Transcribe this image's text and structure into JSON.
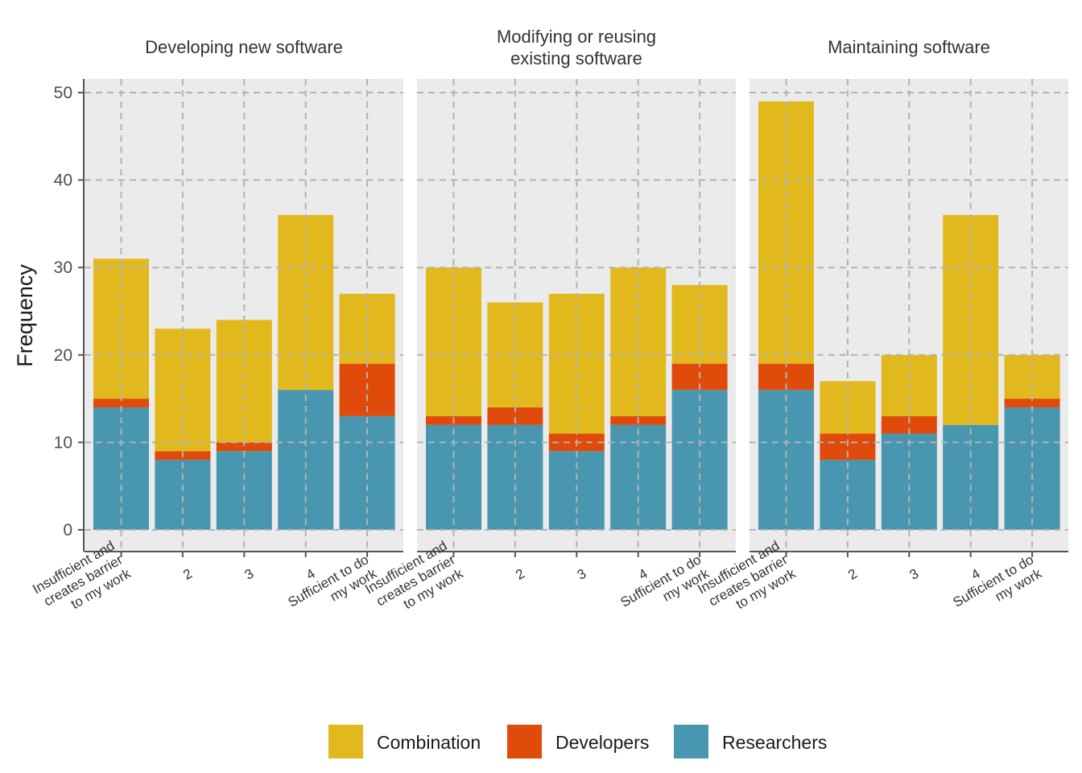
{
  "chart_data": {
    "type": "bar",
    "stacked": true,
    "ylabel": "Frequency",
    "xlabel": "",
    "ylim": [
      0,
      50
    ],
    "yticks": [
      "0",
      "10",
      "20",
      "30",
      "40",
      "50"
    ],
    "categories": [
      "Insufficient and\ncreates barrier\nto my work",
      "2",
      "3",
      "4",
      "Sufficient to do\nmy work"
    ],
    "legend": {
      "position": "bottom",
      "entries": [
        {
          "name": "Combination",
          "color": "#E1B91C"
        },
        {
          "name": "Developers",
          "color": "#E04A0A"
        },
        {
          "name": "Researchers",
          "color": "#4896AF"
        }
      ]
    },
    "grid": true,
    "panels": [
      {
        "title": "Developing new software",
        "series": [
          {
            "name": "Researchers",
            "values": [
              14,
              8,
              9,
              16,
              13
            ]
          },
          {
            "name": "Developers",
            "values": [
              1,
              1,
              1,
              0,
              6
            ]
          },
          {
            "name": "Combination",
            "values": [
              16,
              14,
              14,
              20,
              8
            ]
          }
        ]
      },
      {
        "title": "Modifying or reusing\nexisting software",
        "series": [
          {
            "name": "Researchers",
            "values": [
              12,
              12,
              9,
              12,
              16
            ]
          },
          {
            "name": "Developers",
            "values": [
              1,
              2,
              2,
              1,
              3
            ]
          },
          {
            "name": "Combination",
            "values": [
              17,
              12,
              16,
              17,
              9
            ]
          }
        ]
      },
      {
        "title": "Maintaining software",
        "series": [
          {
            "name": "Researchers",
            "values": [
              16,
              8,
              11,
              12,
              14
            ]
          },
          {
            "name": "Developers",
            "values": [
              3,
              3,
              2,
              0,
              1
            ]
          },
          {
            "name": "Combination",
            "values": [
              30,
              6,
              7,
              24,
              5
            ]
          }
        ]
      }
    ]
  }
}
